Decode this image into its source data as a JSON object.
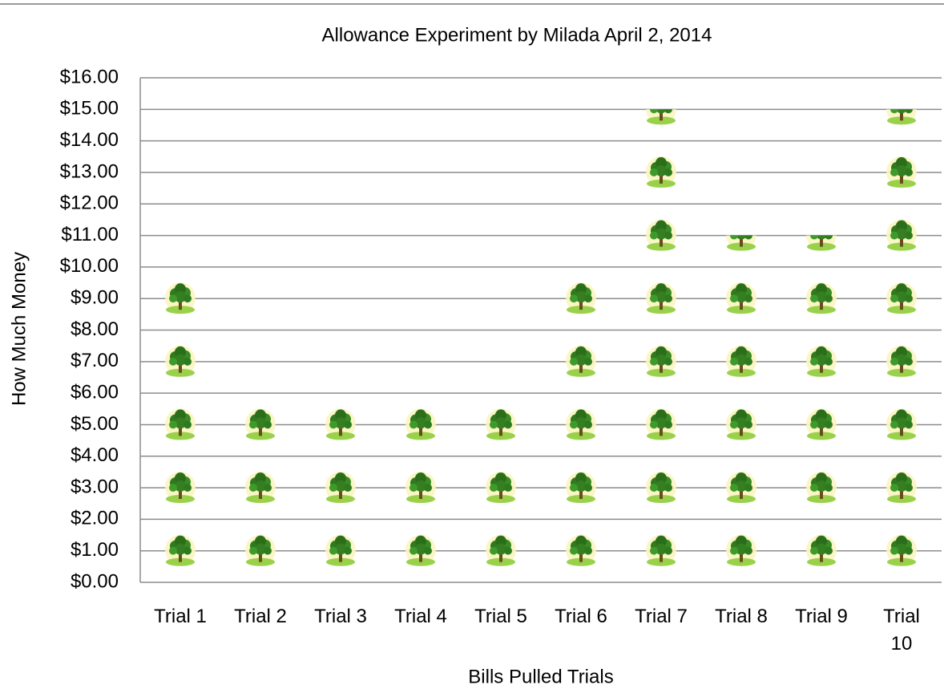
{
  "chart_data": {
    "type": "pictograph-bar",
    "title": "Allowance Experiment by Milada April 2, 2014",
    "x_label": "Bills Pulled Trials",
    "y_label": "How Much Money",
    "categories": [
      "Trial 1",
      "Trial 2",
      "Trial 3",
      "Trial 4",
      "Trial 5",
      "Trial 6",
      "Trial 7",
      "Trial 8",
      "Trial 9",
      "Trial 10"
    ],
    "values": [
      10,
      6,
      6,
      6,
      6,
      10,
      15,
      11,
      11,
      15
    ],
    "ylim": [
      0,
      16
    ],
    "yticks": [
      {
        "value": 0,
        "label": "$0.00"
      },
      {
        "value": 1,
        "label": "$1.00"
      },
      {
        "value": 2,
        "label": "$2.00"
      },
      {
        "value": 3,
        "label": "$3.00"
      },
      {
        "value": 4,
        "label": "$4.00"
      },
      {
        "value": 5,
        "label": "$5.00"
      },
      {
        "value": 6,
        "label": "$6.00"
      },
      {
        "value": 7,
        "label": "$7.00"
      },
      {
        "value": 8,
        "label": "$8.00"
      },
      {
        "value": 9,
        "label": "$9.00"
      },
      {
        "value": 10,
        "label": "$10.00"
      },
      {
        "value": 11,
        "label": "$11.00"
      },
      {
        "value": 12,
        "label": "$12.00"
      },
      {
        "value": 13,
        "label": "$13.00"
      },
      {
        "value": 14,
        "label": "$14.00"
      },
      {
        "value": 15,
        "label": "$15.00"
      },
      {
        "value": 16,
        "label": "$16.00"
      }
    ],
    "grid": true
  }
}
